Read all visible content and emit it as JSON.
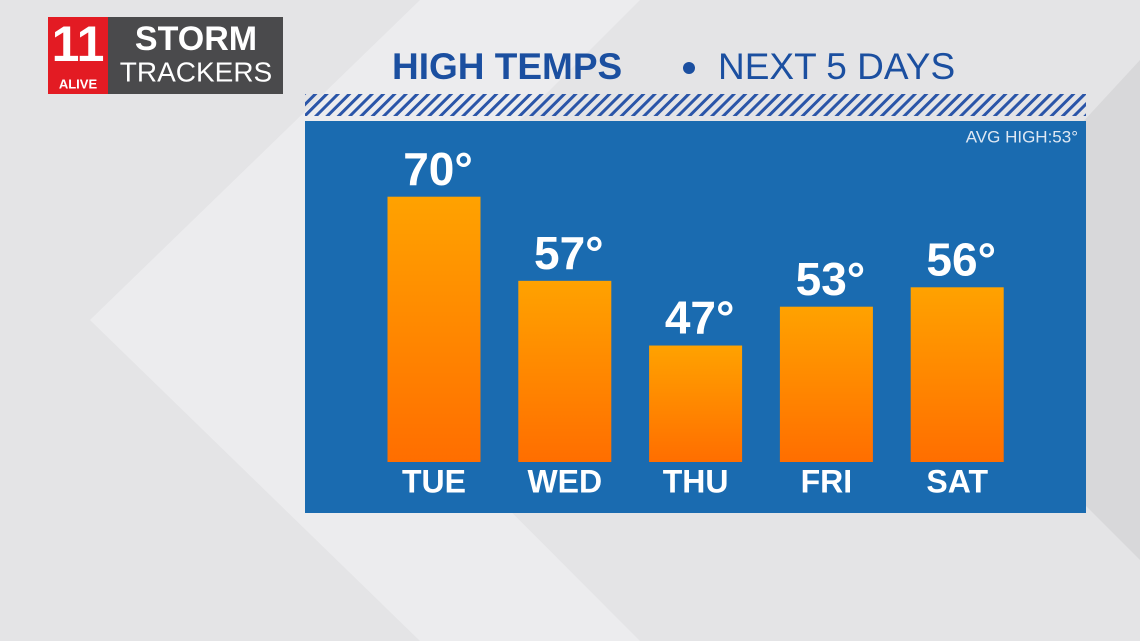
{
  "logo": {
    "number": "11",
    "station": "ALIVE",
    "line1": "STORM",
    "line2": "TRACKERS"
  },
  "chart_data": {
    "type": "bar",
    "title": "HIGH TEMPS",
    "subtitle": "NEXT 5 DAYS",
    "annotation": "AVG HIGH:53°",
    "categories": [
      "TUE",
      "WED",
      "THU",
      "FRI",
      "SAT"
    ],
    "values": [
      70,
      57,
      47,
      53,
      56
    ],
    "value_labels": [
      "70°",
      "57°",
      "47°",
      "53°",
      "56°"
    ],
    "color": "#ffa200",
    "ylim": [
      29,
      80
    ]
  }
}
